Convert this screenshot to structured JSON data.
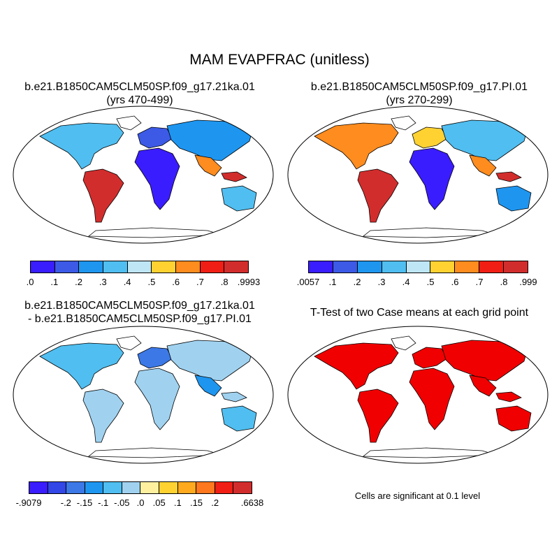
{
  "main_title": "MAM EVAPFRAC (unitless)",
  "panels": [
    {
      "title_line1": "b.e21.B1850CAM5CLM50SP.f09_g17.21ka.01",
      "title_line2": "(yrs 470-499)"
    },
    {
      "title_line1": "b.e21.B1850CAM5CLM50SP.f09_g17.PI.01",
      "title_line2": "(yrs 270-299)"
    },
    {
      "title_line1": "b.e21.B1850CAM5CLM50SP.f09_g17.21ka.01",
      "title_line2": "- b.e21.B1850CAM5CLM50SP.f09_g17.PI.01"
    },
    {
      "title_line1": "T-Test of two Case means at each grid point",
      "title_line2": ""
    }
  ],
  "colorbars": [
    {
      "colors": [
        "#3a1dff",
        "#3c5ae6",
        "#1e96f0",
        "#50bef0",
        "#bee6f5",
        "#ffd232",
        "#ff8c1e",
        "#f01e14",
        "#d22d2d"
      ],
      "labels": [
        ".0",
        ".1",
        ".2",
        ".3",
        ".4",
        ".5",
        ".6",
        ".7",
        ".8",
        ".9993"
      ]
    },
    {
      "colors": [
        "#3a1dff",
        "#3c5ae6",
        "#1e96f0",
        "#50bef0",
        "#bee6f5",
        "#ffd232",
        "#ff8c1e",
        "#f01e14",
        "#d22d2d"
      ],
      "labels": [
        ".0057",
        ".1",
        ".2",
        ".3",
        ".4",
        ".5",
        ".6",
        ".7",
        ".8",
        ".999"
      ]
    },
    {
      "colors": [
        "#3a1dff",
        "#3247e6",
        "#3c78e6",
        "#1e96f0",
        "#50bef0",
        "#a0d2f0",
        "#fff0a0",
        "#ffd232",
        "#ffaa1e",
        "#ff781e",
        "#f01e14",
        "#d22d2d"
      ],
      "labels": [
        "-.9079",
        "",
        "-.2",
        "-.15",
        "-.1",
        "-.05",
        ".0",
        ".05",
        ".1",
        ".15",
        ".2",
        "",
        ".6638"
      ]
    }
  ],
  "significance_note": "Cells are significant at 0.1 level"
}
